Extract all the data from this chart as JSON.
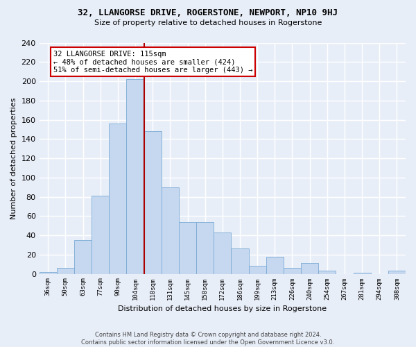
{
  "title1": "32, LLANGORSE DRIVE, ROGERSTONE, NEWPORT, NP10 9HJ",
  "title2": "Size of property relative to detached houses in Rogerstone",
  "xlabel": "Distribution of detached houses by size in Rogerstone",
  "ylabel": "Number of detached properties",
  "footer1": "Contains HM Land Registry data © Crown copyright and database right 2024.",
  "footer2": "Contains public sector information licensed under the Open Government Licence v3.0.",
  "categories": [
    "36sqm",
    "50sqm",
    "63sqm",
    "77sqm",
    "90sqm",
    "104sqm",
    "118sqm",
    "131sqm",
    "145sqm",
    "158sqm",
    "172sqm",
    "186sqm",
    "199sqm",
    "213sqm",
    "226sqm",
    "240sqm",
    "254sqm",
    "267sqm",
    "281sqm",
    "294sqm",
    "308sqm"
  ],
  "values": [
    2,
    6,
    35,
    81,
    156,
    202,
    148,
    90,
    54,
    54,
    43,
    26,
    8,
    18,
    6,
    11,
    3,
    0,
    1,
    0,
    3
  ],
  "bar_color": "#c5d8f0",
  "bar_edge_color": "#7aaad4",
  "background_color": "#e8eef8",
  "grid_color": "#ffffff",
  "property_label": "32 LLANGORSE DRIVE: 115sqm",
  "annotation_line1": "← 48% of detached houses are smaller (424)",
  "annotation_line2": "51% of semi-detached houses are larger (443) →",
  "annotation_box_color": "#ffffff",
  "annotation_box_edge": "#cc0000",
  "vline_color": "#aa0000",
  "vline_x_index": 5.5,
  "ylim_max": 240,
  "yticks": [
    0,
    20,
    40,
    60,
    80,
    100,
    120,
    140,
    160,
    180,
    200,
    220,
    240
  ]
}
